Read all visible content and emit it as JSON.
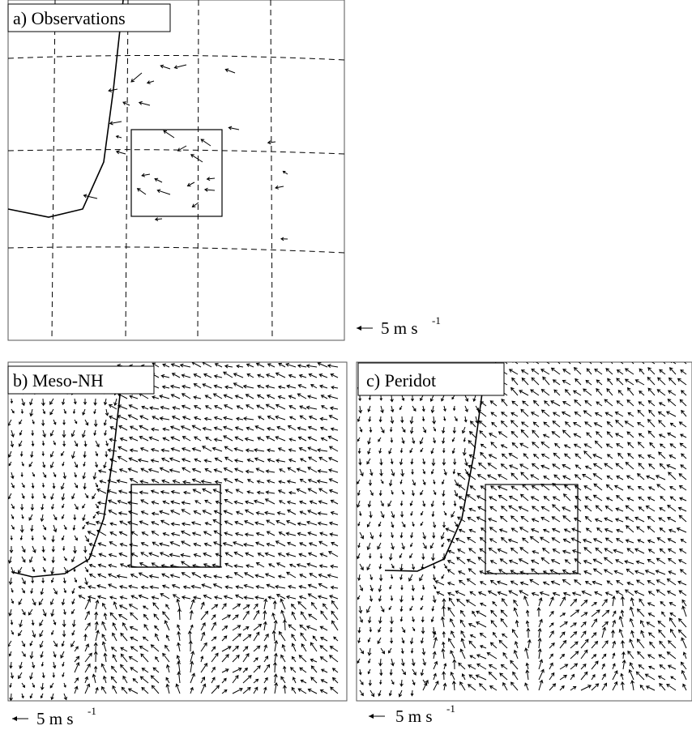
{
  "panels": [
    {
      "label": "a) Observations",
      "scale": {
        "text": "5 m s",
        "sup": "-1"
      }
    },
    {
      "label": "b) Meso-NH",
      "scale": {
        "text": "5 m s",
        "sup": "-1"
      }
    },
    {
      "label": "c) Peridot",
      "scale": {
        "text": "5 m s",
        "sup": "-1"
      }
    }
  ]
}
